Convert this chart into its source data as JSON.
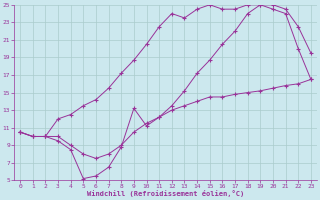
{
  "xlabel": "Windchill (Refroidissement éolien,°C)",
  "bg_color": "#cce8ee",
  "grid_color": "#aacccc",
  "line_color": "#993399",
  "xlim": [
    -0.5,
    23.5
  ],
  "ylim": [
    5,
    25
  ],
  "xticks": [
    0,
    1,
    2,
    3,
    4,
    5,
    6,
    7,
    8,
    9,
    10,
    11,
    12,
    13,
    14,
    15,
    16,
    17,
    18,
    19,
    20,
    21,
    22,
    23
  ],
  "yticks": [
    5,
    7,
    9,
    11,
    13,
    15,
    17,
    19,
    21,
    23,
    25
  ],
  "line1_x": [
    0,
    1,
    2,
    3,
    4,
    5,
    6,
    7,
    8,
    9,
    10,
    11,
    12,
    13,
    14,
    15,
    16,
    17,
    18,
    19,
    20,
    21,
    22,
    23
  ],
  "line1_y": [
    10.5,
    10.0,
    10.0,
    9.5,
    8.5,
    5.2,
    5.5,
    6.5,
    8.8,
    13.2,
    11.2,
    12.2,
    13.5,
    15.2,
    17.2,
    18.7,
    20.5,
    22.0,
    24.0,
    25.0,
    25.0,
    24.5,
    22.5,
    19.5
  ],
  "line2_x": [
    0,
    1,
    2,
    3,
    4,
    5,
    6,
    7,
    8,
    9,
    10,
    11,
    12,
    13,
    14,
    15,
    16,
    17,
    18,
    19,
    20,
    21,
    22,
    23
  ],
  "line2_y": [
    10.5,
    10.0,
    10.0,
    12.0,
    12.5,
    13.5,
    14.2,
    15.5,
    17.2,
    18.7,
    20.5,
    22.5,
    24.0,
    23.5,
    24.5,
    25.0,
    24.5,
    24.5,
    25.0,
    25.0,
    24.5,
    24.0,
    20.0,
    16.5
  ],
  "line3_x": [
    0,
    1,
    2,
    3,
    4,
    5,
    6,
    7,
    8,
    9,
    10,
    11,
    12,
    13,
    14,
    15,
    16,
    17,
    18,
    19,
    20,
    21,
    22,
    23
  ],
  "line3_y": [
    10.5,
    10.0,
    10.0,
    10.0,
    9.0,
    8.0,
    7.5,
    8.0,
    9.0,
    10.5,
    11.5,
    12.2,
    13.0,
    13.5,
    14.0,
    14.5,
    14.5,
    14.8,
    15.0,
    15.2,
    15.5,
    15.8,
    16.0,
    16.5
  ]
}
